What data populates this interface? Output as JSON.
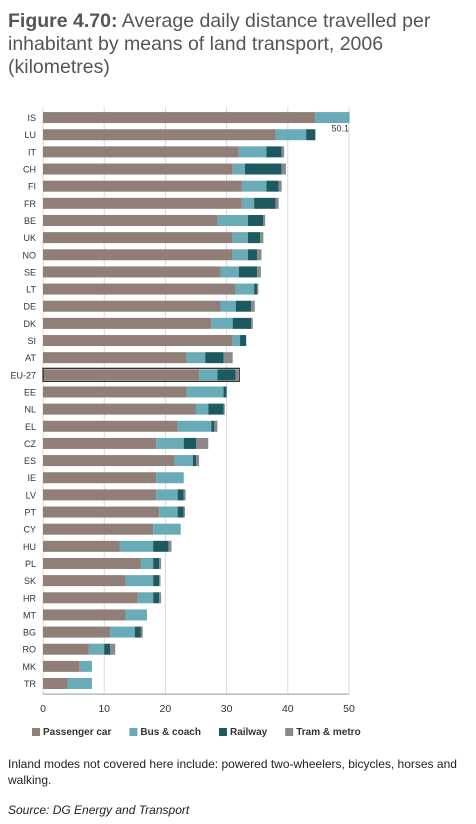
{
  "title": {
    "prefix": "Figure 4.70:",
    "text": "Average daily distance travelled per inhabitant by means of land transport, 2006 (kilometres)"
  },
  "note": "Inland modes not covered here include: powered two-wheelers, bicycles, horses and walking.",
  "source": "Source: DG Energy and Transport",
  "chart_data": {
    "type": "bar",
    "orientation": "horizontal",
    "stacked": true,
    "categories": [
      "IS",
      "LU",
      "IT",
      "CH",
      "FI",
      "FR",
      "BE",
      "UK",
      "NO",
      "SE",
      "LT",
      "DE",
      "DK",
      "SI",
      "AT",
      "EU-27",
      "EE",
      "NL",
      "EL",
      "CZ",
      "ES",
      "IE",
      "LV",
      "PT",
      "CY",
      "HU",
      "PL",
      "SK",
      "HR",
      "MT",
      "BG",
      "RO",
      "MK",
      "TR"
    ],
    "highlight": "EU-27",
    "series": [
      {
        "name": "Passenger car",
        "color": "#8f7f78",
        "values": [
          44.5,
          38,
          32,
          31,
          32.5,
          32.5,
          28.5,
          31,
          31,
          29,
          31.5,
          29,
          27.5,
          31,
          23.5,
          25.5,
          23.5,
          25,
          22,
          18.5,
          21.5,
          18.5,
          18.5,
          19,
          18,
          12.5,
          16,
          13.5,
          15.5,
          13.5,
          11,
          7.5,
          6,
          4
        ]
      },
      {
        "name": "Bus & coach",
        "color": "#6aabb8",
        "values": [
          5.6,
          5,
          4.5,
          2,
          4,
          2,
          5,
          2.5,
          2.5,
          3,
          3,
          2.5,
          3.5,
          1.2,
          3,
          3,
          6,
          2,
          5.5,
          4.5,
          3,
          4.5,
          3.5,
          3,
          4.5,
          5.5,
          2,
          4.5,
          2.5,
          3.5,
          4,
          2.5,
          2,
          4
        ]
      },
      {
        "name": "Railway",
        "color": "#1d5a60",
        "values": [
          0,
          1.5,
          2.5,
          6,
          2,
          3.5,
          2.5,
          2,
          1.5,
          3,
          0.5,
          2.5,
          3,
          1,
          3,
          3,
          0.5,
          2.5,
          0.5,
          2,
          0.5,
          0,
          1,
          1,
          0,
          2.5,
          1,
          1,
          1,
          0,
          1,
          1,
          0,
          0
        ]
      },
      {
        "name": "Tram & metro",
        "color": "#8a8a8a",
        "values": [
          0,
          0,
          0.4,
          0.7,
          0.5,
          0.5,
          0.3,
          0.5,
          0.7,
          0.6,
          0.2,
          0.6,
          0.3,
          0,
          1.5,
          0.4,
          0,
          0.2,
          0.5,
          2,
          0.5,
          0,
          0.3,
          0.2,
          0,
          0.5,
          0.3,
          0.2,
          0.3,
          0,
          0.3,
          0.8,
          0,
          0
        ]
      }
    ],
    "data_labels": [
      {
        "category": "IS",
        "text": "50.1"
      }
    ],
    "xlim": [
      0,
      50
    ],
    "xticks": [
      0,
      10,
      20,
      30,
      40,
      50
    ],
    "xlabel": "",
    "ylabel": "",
    "grid": "vertical",
    "legend_position": "bottom"
  }
}
